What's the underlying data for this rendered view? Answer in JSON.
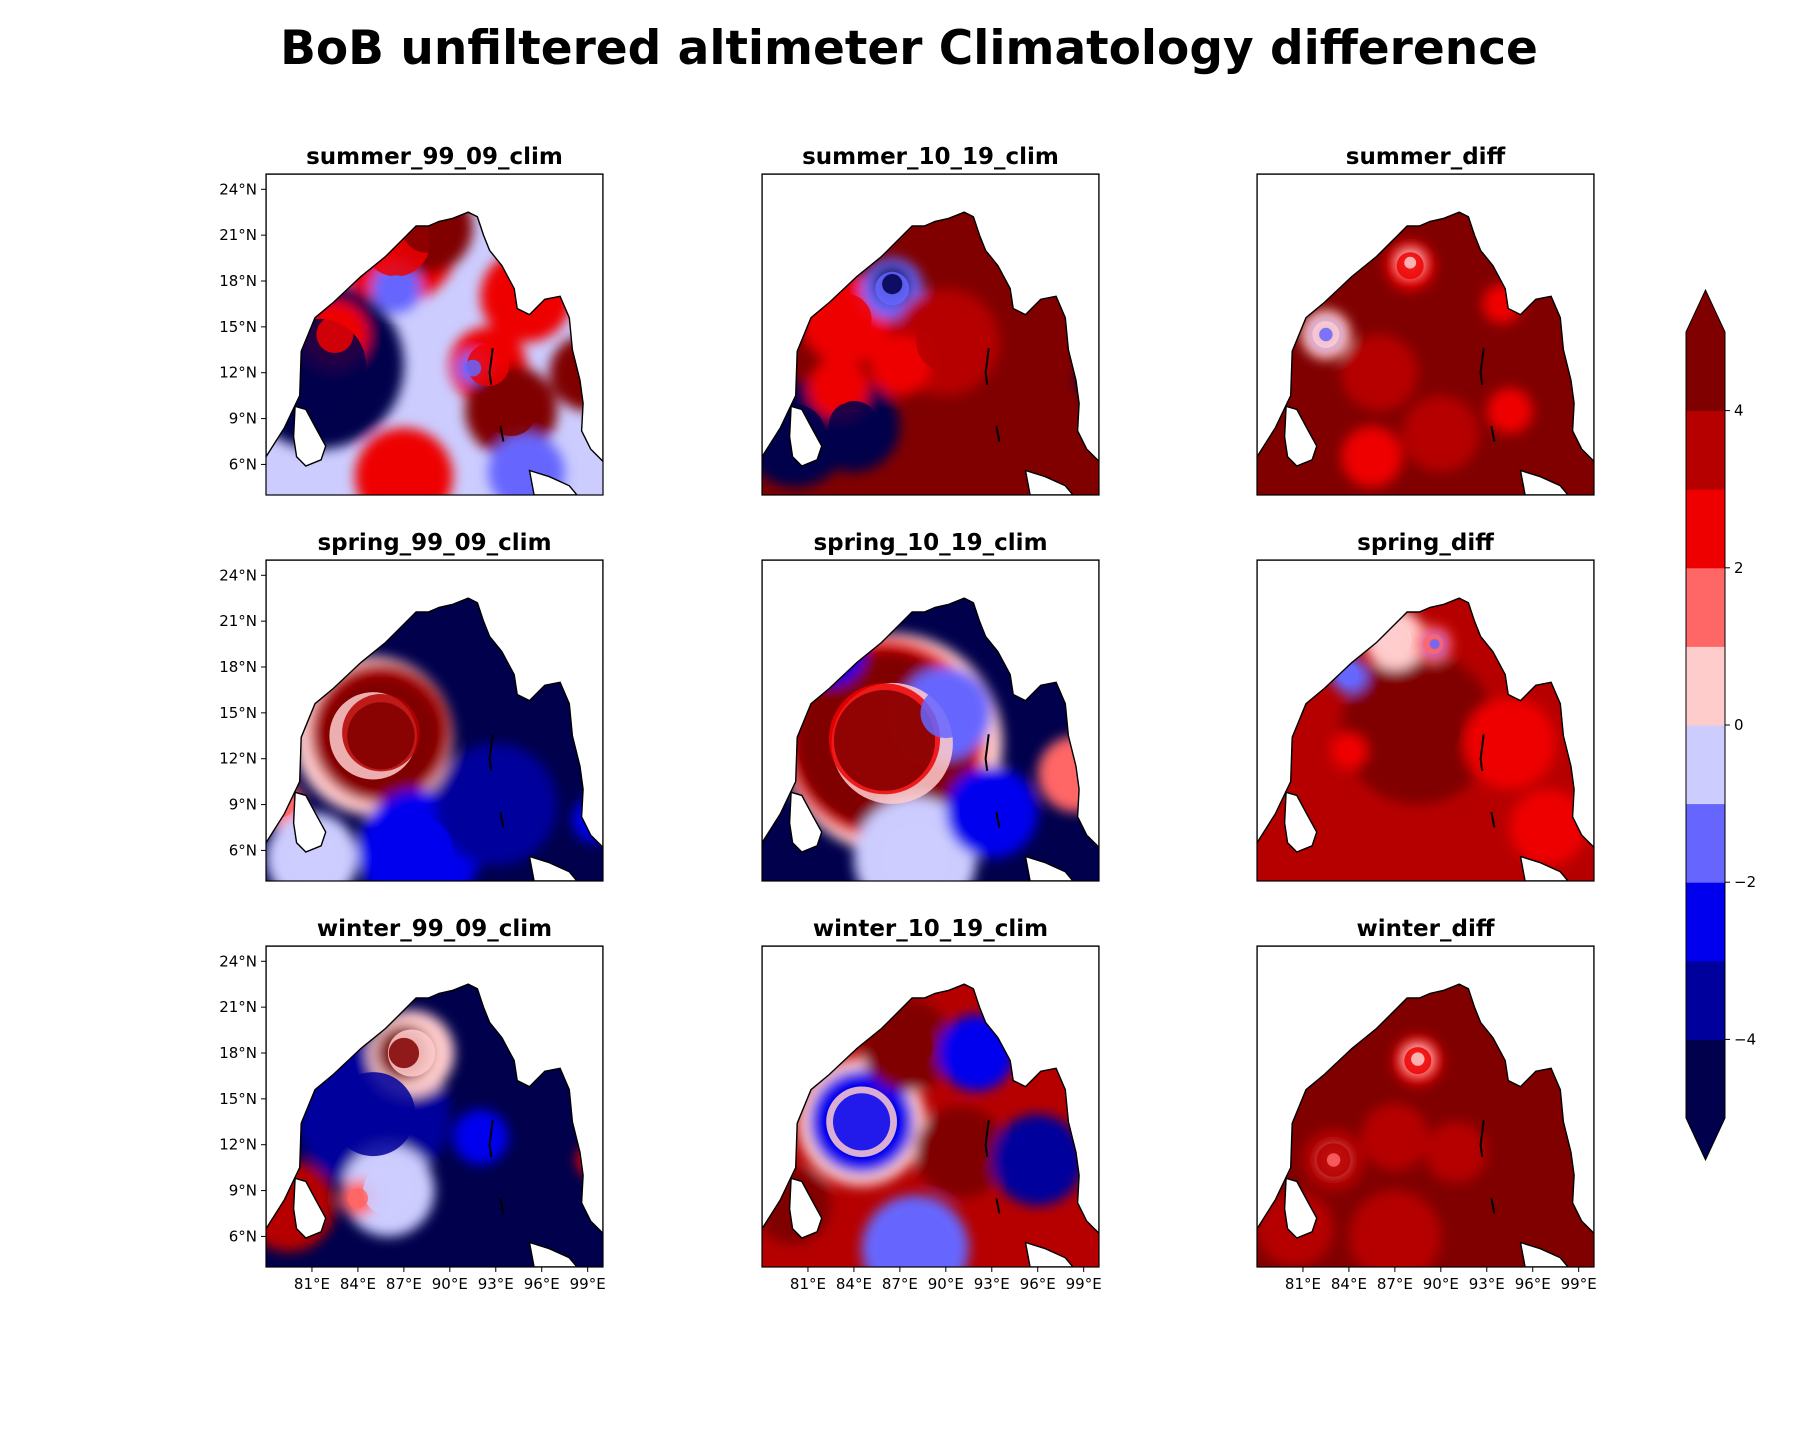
{
  "figure": {
    "title": "BoB unfiltered altimeter Climatology difference"
  },
  "chart_data": {
    "type": "heatmap",
    "title": "BoB unfiltered altimeter Climatology difference",
    "lat_ticks": [
      "6°N",
      "9°N",
      "12°N",
      "15°N",
      "18°N",
      "21°N",
      "24°N"
    ],
    "lon_ticks": [
      "81°E",
      "84°E",
      "87°E",
      "90°E",
      "93°E",
      "96°E",
      "99°E"
    ],
    "extent": {
      "lon": [
        78,
        100
      ],
      "lat": [
        4,
        25
      ]
    },
    "colorbar": {
      "levels": [
        -5,
        -4,
        -3,
        -2,
        -1,
        0,
        1,
        2,
        3,
        4,
        5
      ],
      "tick_values": [
        -4,
        -2,
        0,
        2,
        4
      ],
      "tick_labels": [
        "−4",
        "−2",
        "0",
        "2",
        "4"
      ],
      "colors": [
        "#00004c",
        "#00009c",
        "#0000ee",
        "#6666ff",
        "#ccccff",
        "#ffcccc",
        "#ff6666",
        "#ee0000",
        "#b60000",
        "#800000"
      ],
      "extend": "both",
      "under_color": "#00004c",
      "over_color": "#800000"
    },
    "panels": [
      {
        "title": "summer_99_09_clim",
        "row": 0,
        "col": 0,
        "background_value": -0.5,
        "features": [
          {
            "lon": 81.5,
            "lat": 12.5,
            "r": 5.5,
            "value": -5
          },
          {
            "lon": 82.5,
            "lat": 14.5,
            "r": 2.2,
            "value": 2.5
          },
          {
            "lon": 86.5,
            "lat": 20.5,
            "r": 4.0,
            "value": 2.5
          },
          {
            "lon": 88.5,
            "lat": 21.5,
            "r": 3.0,
            "value": 4.5
          },
          {
            "lon": 86.5,
            "lat": 17.5,
            "r": 1.6,
            "value": -2
          },
          {
            "lon": 92.5,
            "lat": 12.5,
            "r": 2.5,
            "value": 2.5
          },
          {
            "lon": 91.5,
            "lat": 12.3,
            "r": 1.0,
            "value": -2
          },
          {
            "lon": 94,
            "lat": 9.5,
            "r": 3.0,
            "value": 4.5
          },
          {
            "lon": 95,
            "lat": 17,
            "r": 3.0,
            "value": 2.5
          },
          {
            "lon": 87,
            "lat": 5.2,
            "r": 3.2,
            "value": 2.5
          },
          {
            "lon": 95,
            "lat": 5.5,
            "r": 2.5,
            "value": -1.5
          },
          {
            "lon": 99,
            "lat": 12,
            "r": 2.5,
            "value": 4.5
          }
        ]
      },
      {
        "title": "summer_10_19_clim",
        "row": 0,
        "col": 1,
        "background_value": 4.5,
        "features": [
          {
            "lon": 83.5,
            "lat": 15.5,
            "r": 3.0,
            "value": 2.5
          },
          {
            "lon": 86.5,
            "lat": 17.5,
            "r": 2.0,
            "value": -1.5
          },
          {
            "lon": 86.5,
            "lat": 17.8,
            "r": 1.2,
            "value": -4.5
          },
          {
            "lon": 80.2,
            "lat": 8.0,
            "r": 3.5,
            "value": -5
          },
          {
            "lon": 84.0,
            "lat": 8.5,
            "r": 3.0,
            "value": -5
          },
          {
            "lon": 83.0,
            "lat": 11.0,
            "r": 2.0,
            "value": 2.5
          },
          {
            "lon": 90.0,
            "lat": 14.0,
            "r": 3.5,
            "value": 3.5
          },
          {
            "lon": 87.0,
            "lat": 12.5,
            "r": 2.0,
            "value": 2.5
          },
          {
            "lon": 99.5,
            "lat": 11.5,
            "r": 1.0,
            "value": -4.5
          }
        ]
      },
      {
        "title": "summer_diff",
        "row": 0,
        "col": 2,
        "background_value": 4.5,
        "features": [
          {
            "lon": 82.5,
            "lat": 14.5,
            "r": 1.6,
            "value": 0.5
          },
          {
            "lon": 82.5,
            "lat": 14.5,
            "r": 0.8,
            "value": -2
          },
          {
            "lon": 88.0,
            "lat": 19.0,
            "r": 1.6,
            "value": 2.5
          },
          {
            "lon": 88.0,
            "lat": 19.2,
            "r": 0.7,
            "value": 0.5
          },
          {
            "lon": 94.0,
            "lat": 16.5,
            "r": 1.3,
            "value": 2.5
          },
          {
            "lon": 86.0,
            "lat": 12.0,
            "r": 2.5,
            "value": 3.5
          },
          {
            "lon": 85.5,
            "lat": 6.5,
            "r": 2.0,
            "value": 2.5
          },
          {
            "lon": 94.5,
            "lat": 9.5,
            "r": 1.5,
            "value": 2.5
          },
          {
            "lon": 90.0,
            "lat": 8.0,
            "r": 2.5,
            "value": 3.5
          }
        ]
      },
      {
        "title": "spring_99_09_clim",
        "row": 1,
        "col": 0,
        "background_value": -4.5,
        "features": [
          {
            "lon": 85.0,
            "lat": 13.5,
            "r": 5.2,
            "value": 0.5
          },
          {
            "lon": 85.5,
            "lat": 13.7,
            "r": 4.6,
            "value": 3.5
          },
          {
            "lon": 85.5,
            "lat": 13.5,
            "r": 4.0,
            "value": 4.5
          },
          {
            "lon": 79.0,
            "lat": 9.0,
            "r": 1.5,
            "value": 1.5
          },
          {
            "lon": 88.0,
            "lat": 6.0,
            "r": 4.0,
            "value": -2.5
          },
          {
            "lon": 81.0,
            "lat": 5.5,
            "r": 3.0,
            "value": -0.5
          },
          {
            "lon": 93.0,
            "lat": 9.0,
            "r": 4.0,
            "value": -3.5
          },
          {
            "lon": 99.5,
            "lat": 8.0,
            "r": 1.5,
            "value": -2.5
          }
        ]
      },
      {
        "title": "spring_10_19_clim",
        "row": 1,
        "col": 1,
        "background_value": -4.5,
        "features": [
          {
            "lon": 86.5,
            "lat": 13.0,
            "r": 7.2,
            "value": 0.5
          },
          {
            "lon": 86.0,
            "lat": 13.3,
            "r": 6.6,
            "value": 2.5
          },
          {
            "lon": 86.0,
            "lat": 13.2,
            "r": 6.0,
            "value": 4.5
          },
          {
            "lon": 90.0,
            "lat": 15.0,
            "r": 3.0,
            "value": -1.5
          },
          {
            "lon": 88.0,
            "lat": 5.5,
            "r": 4.0,
            "value": -0.5
          },
          {
            "lon": 93.0,
            "lat": 8.5,
            "r": 3.0,
            "value": -2.5
          },
          {
            "lon": 98.5,
            "lat": 11.0,
            "r": 2.5,
            "value": 1.5
          },
          {
            "lon": 82.5,
            "lat": 19.0,
            "r": 2.2,
            "value": -2.5
          }
        ]
      },
      {
        "title": "spring_diff",
        "row": 1,
        "col": 2,
        "background_value": 3.5,
        "features": [
          {
            "lon": 88.5,
            "lat": 14.0,
            "r": 5.0,
            "value": 4.5
          },
          {
            "lon": 94.5,
            "lat": 13.0,
            "r": 3.0,
            "value": 2.5
          },
          {
            "lon": 97.0,
            "lat": 7.5,
            "r": 2.5,
            "value": 2.5
          },
          {
            "lon": 87.0,
            "lat": 19.8,
            "r": 2.0,
            "value": 0.5
          },
          {
            "lon": 89.5,
            "lat": 19.5,
            "r": 1.2,
            "value": 1.5
          },
          {
            "lon": 89.6,
            "lat": 19.5,
            "r": 0.6,
            "value": -2
          },
          {
            "lon": 84.0,
            "lat": 17.5,
            "r": 1.2,
            "value": -1.5
          },
          {
            "lon": 84.0,
            "lat": 12.5,
            "r": 1.2,
            "value": 2.5
          }
        ]
      },
      {
        "title": "winter_99_09_clim",
        "row": 2,
        "col": 0,
        "background_value": -4.5,
        "features": [
          {
            "lon": 85.0,
            "lat": 14.0,
            "r": 5.0,
            "value": -3.5
          },
          {
            "lon": 87.5,
            "lat": 18.0,
            "r": 2.8,
            "value": 0.5
          },
          {
            "lon": 87.0,
            "lat": 18.0,
            "r": 1.8,
            "value": 4.5
          },
          {
            "lon": 79.5,
            "lat": 8.0,
            "r": 3.0,
            "value": 3.5
          },
          {
            "lon": 86.0,
            "lat": 9.0,
            "r": 3.0,
            "value": -0.5
          },
          {
            "lon": 84.0,
            "lat": 8.5,
            "r": 1.2,
            "value": 1.5
          },
          {
            "lon": 92.0,
            "lat": 12.5,
            "r": 1.8,
            "value": -2.5
          },
          {
            "lon": 99.5,
            "lat": 11.0,
            "r": 1.2,
            "value": 2.5
          }
        ]
      },
      {
        "title": "winter_10_19_clim",
        "row": 2,
        "col": 1,
        "background_value": 3.5,
        "features": [
          {
            "lon": 84.5,
            "lat": 13.5,
            "r": 4.2,
            "value": 0.5
          },
          {
            "lon": 84.5,
            "lat": 13.5,
            "r": 3.4,
            "value": -2.5
          },
          {
            "lon": 87.5,
            "lat": 18.5,
            "r": 3.0,
            "value": 4.5
          },
          {
            "lon": 91.0,
            "lat": 11.5,
            "r": 3.0,
            "value": 4.5
          },
          {
            "lon": 92.0,
            "lat": 18.0,
            "r": 2.5,
            "value": -2.5
          },
          {
            "lon": 96.0,
            "lat": 11.0,
            "r": 3.0,
            "value": -3.5
          },
          {
            "lon": 88.0,
            "lat": 5.2,
            "r": 3.5,
            "value": -1.5
          },
          {
            "lon": 80.0,
            "lat": 8.0,
            "r": 2.5,
            "value": 4.5
          }
        ]
      },
      {
        "title": "winter_diff",
        "row": 2,
        "col": 2,
        "background_value": 4.5,
        "features": [
          {
            "lon": 88.5,
            "lat": 17.5,
            "r": 1.6,
            "value": 2.5
          },
          {
            "lon": 88.5,
            "lat": 17.6,
            "r": 0.8,
            "value": 0.5
          },
          {
            "lon": 87.0,
            "lat": 12.5,
            "r": 2.2,
            "value": 3.5
          },
          {
            "lon": 83.0,
            "lat": 11.0,
            "r": 2.0,
            "value": 3.5
          },
          {
            "lon": 83.0,
            "lat": 11.0,
            "r": 0.8,
            "value": 1.5
          },
          {
            "lon": 91.0,
            "lat": 11.5,
            "r": 2.0,
            "value": 3.5
          },
          {
            "lon": 80.5,
            "lat": 6.5,
            "r": 2.5,
            "value": 3.5
          },
          {
            "lon": 87.0,
            "lat": 6.0,
            "r": 3.0,
            "value": 3.5
          }
        ]
      }
    ]
  }
}
